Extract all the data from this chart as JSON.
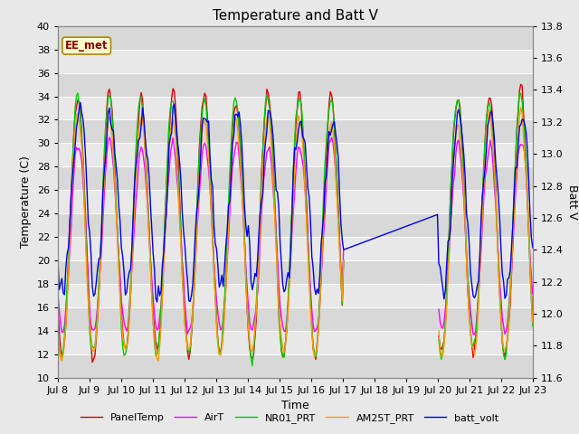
{
  "title": "Temperature and Batt V",
  "xlabel": "Time",
  "ylabel_left": "Temperature (C)",
  "ylabel_right": "Batt V",
  "ylim_left": [
    10,
    40
  ],
  "ylim_right": [
    11.6,
    13.8
  ],
  "annotation": "EE_met",
  "xtick_labels": [
    "Jul 8",
    "Jul 9",
    "Jul 10",
    "Jul 11",
    "Jul 12",
    "Jul 13",
    "Jul 14",
    "Jul 15",
    "Jul 16",
    "Jul 17",
    "Jul 18",
    "Jul 19",
    "Jul 20",
    "Jul 21",
    "Jul 22",
    "Jul 23"
  ],
  "series": {
    "PanelTemp": {
      "color": "#dd0000",
      "lw": 1.0
    },
    "AirT": {
      "color": "#ff00ff",
      "lw": 1.0
    },
    "NR01_PRT": {
      "color": "#00cc00",
      "lw": 1.0
    },
    "AM25T_PRT": {
      "color": "#ff9900",
      "lw": 1.0
    },
    "batt_volt": {
      "color": "#0000ee",
      "lw": 1.0
    }
  },
  "bg_color": "#e8e8e8",
  "band_colors": [
    "#d8d8d8",
    "#e8e8e8"
  ],
  "grid_color": "#ffffff",
  "title_fontsize": 11,
  "axis_fontsize": 9,
  "tick_fontsize": 8,
  "legend_fontsize": 8
}
